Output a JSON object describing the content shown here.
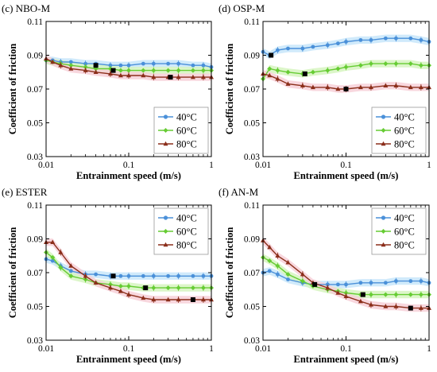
{
  "chart_data": [
    {
      "type": "line",
      "panel_label": "(c) NBO-M",
      "xlabel": "Entrainment speed (m/s)",
      "ylabel": "Coefficient of friction",
      "xscale": "log",
      "xlim": [
        0.01,
        1
      ],
      "ylim": [
        0.03,
        0.11
      ],
      "xticks": [
        "0.01",
        "0.1",
        "1"
      ],
      "yticks": [
        "0.03",
        "0.05",
        "0.07",
        "0.09",
        "0.11"
      ],
      "legend_position": "bottom-right",
      "series": [
        {
          "name": "40°C",
          "color": "#4a90d9",
          "marker": "circle",
          "x": [
            0.01,
            0.012,
            0.015,
            0.02,
            0.03,
            0.04,
            0.06,
            0.08,
            0.1,
            0.15,
            0.2,
            0.3,
            0.4,
            0.6,
            0.8,
            1.0
          ],
          "y": [
            0.087,
            0.087,
            0.086,
            0.086,
            0.085,
            0.085,
            0.084,
            0.084,
            0.084,
            0.085,
            0.085,
            0.085,
            0.085,
            0.084,
            0.084,
            0.083
          ]
        },
        {
          "name": "60°C",
          "color": "#66cc33",
          "marker": "diamond",
          "x": [
            0.01,
            0.012,
            0.015,
            0.02,
            0.03,
            0.04,
            0.06,
            0.08,
            0.1,
            0.15,
            0.2,
            0.3,
            0.4,
            0.6,
            0.8,
            1.0
          ],
          "y": [
            0.087,
            0.086,
            0.085,
            0.084,
            0.083,
            0.082,
            0.082,
            0.081,
            0.081,
            0.081,
            0.081,
            0.081,
            0.081,
            0.081,
            0.081,
            0.081
          ]
        },
        {
          "name": "80°C",
          "color": "#8b2e1a",
          "marker": "triangle",
          "x": [
            0.01,
            0.012,
            0.015,
            0.02,
            0.03,
            0.04,
            0.06,
            0.08,
            0.1,
            0.15,
            0.2,
            0.3,
            0.4,
            0.6,
            0.8,
            1.0
          ],
          "y": [
            0.088,
            0.086,
            0.084,
            0.082,
            0.081,
            0.08,
            0.079,
            0.078,
            0.078,
            0.078,
            0.077,
            0.077,
            0.077,
            0.077,
            0.077,
            0.077
          ]
        }
      ],
      "markers_black": [
        {
          "x": 0.04,
          "y": 0.084
        },
        {
          "x": 0.065,
          "y": 0.081
        },
        {
          "x": 0.32,
          "y": 0.077
        }
      ]
    },
    {
      "type": "line",
      "panel_label": "(d) OSP-M",
      "xlabel": "Entrainment speed (m/s)",
      "ylabel": "Coefficient of friction",
      "xscale": "log",
      "xlim": [
        0.01,
        1
      ],
      "ylim": [
        0.03,
        0.11
      ],
      "xticks": [
        "0.01",
        "0.1",
        "1"
      ],
      "yticks": [
        "0.03",
        "0.05",
        "0.07",
        "0.09",
        "0.11"
      ],
      "legend_position": "bottom-right",
      "series": [
        {
          "name": "40°C",
          "color": "#4a90d9",
          "marker": "circle",
          "x": [
            0.01,
            0.012,
            0.015,
            0.02,
            0.03,
            0.04,
            0.06,
            0.08,
            0.1,
            0.15,
            0.2,
            0.3,
            0.4,
            0.6,
            0.8,
            1.0
          ],
          "y": [
            0.092,
            0.09,
            0.093,
            0.094,
            0.094,
            0.095,
            0.096,
            0.097,
            0.098,
            0.099,
            0.099,
            0.1,
            0.1,
            0.1,
            0.099,
            0.098
          ]
        },
        {
          "name": "60°C",
          "color": "#66cc33",
          "marker": "diamond",
          "x": [
            0.01,
            0.012,
            0.015,
            0.02,
            0.03,
            0.04,
            0.06,
            0.08,
            0.1,
            0.15,
            0.2,
            0.3,
            0.4,
            0.6,
            0.8,
            1.0
          ],
          "y": [
            0.076,
            0.082,
            0.081,
            0.08,
            0.079,
            0.08,
            0.081,
            0.082,
            0.083,
            0.084,
            0.085,
            0.085,
            0.085,
            0.085,
            0.084,
            0.084
          ]
        },
        {
          "name": "80°C",
          "color": "#8b2e1a",
          "marker": "triangle",
          "x": [
            0.01,
            0.012,
            0.015,
            0.02,
            0.03,
            0.04,
            0.06,
            0.08,
            0.1,
            0.15,
            0.2,
            0.3,
            0.4,
            0.6,
            0.8,
            1.0
          ],
          "y": [
            0.079,
            0.078,
            0.076,
            0.073,
            0.072,
            0.071,
            0.071,
            0.07,
            0.07,
            0.071,
            0.071,
            0.072,
            0.072,
            0.071,
            0.071,
            0.071
          ]
        }
      ],
      "markers_black": [
        {
          "x": 0.0125,
          "y": 0.09
        },
        {
          "x": 0.032,
          "y": 0.079
        },
        {
          "x": 0.1,
          "y": 0.07
        }
      ]
    },
    {
      "type": "line",
      "panel_label": "(e) ESTER",
      "xlabel": "Entrainment speed (m/s)",
      "ylabel": "Coefficient of friction",
      "xscale": "log",
      "xlim": [
        0.01,
        1
      ],
      "ylim": [
        0.03,
        0.11
      ],
      "xticks": [
        "0.01",
        "0.1",
        "1"
      ],
      "yticks": [
        "0.03",
        "0.05",
        "0.07",
        "0.09",
        "0.11"
      ],
      "legend_position": "top-right",
      "series": [
        {
          "name": "40°C",
          "color": "#4a90d9",
          "marker": "circle",
          "x": [
            0.01,
            0.012,
            0.015,
            0.02,
            0.03,
            0.04,
            0.06,
            0.08,
            0.1,
            0.15,
            0.2,
            0.3,
            0.4,
            0.6,
            0.8,
            1.0
          ],
          "y": [
            0.078,
            0.077,
            0.074,
            0.071,
            0.069,
            0.069,
            0.068,
            0.068,
            0.068,
            0.068,
            0.068,
            0.068,
            0.068,
            0.068,
            0.068,
            0.068
          ]
        },
        {
          "name": "60°C",
          "color": "#66cc33",
          "marker": "diamond",
          "x": [
            0.01,
            0.012,
            0.015,
            0.02,
            0.03,
            0.04,
            0.06,
            0.08,
            0.1,
            0.15,
            0.2,
            0.3,
            0.4,
            0.6,
            0.8,
            1.0
          ],
          "y": [
            0.082,
            0.079,
            0.073,
            0.068,
            0.066,
            0.064,
            0.063,
            0.062,
            0.062,
            0.061,
            0.061,
            0.061,
            0.061,
            0.061,
            0.061,
            0.061
          ]
        },
        {
          "name": "80°C",
          "color": "#8b2e1a",
          "marker": "triangle",
          "x": [
            0.01,
            0.012,
            0.015,
            0.02,
            0.03,
            0.04,
            0.06,
            0.08,
            0.1,
            0.15,
            0.2,
            0.3,
            0.4,
            0.6,
            0.8,
            1.0
          ],
          "y": [
            0.088,
            0.088,
            0.082,
            0.074,
            0.068,
            0.064,
            0.061,
            0.059,
            0.057,
            0.055,
            0.054,
            0.054,
            0.054,
            0.054,
            0.054,
            0.054
          ]
        }
      ],
      "markers_black": [
        {
          "x": 0.065,
          "y": 0.068
        },
        {
          "x": 0.16,
          "y": 0.061
        },
        {
          "x": 0.6,
          "y": 0.054
        }
      ]
    },
    {
      "type": "line",
      "panel_label": "(f) AN-M",
      "xlabel": "Entrainment speed (m/s)",
      "ylabel": "Coefficient of friction",
      "xscale": "log",
      "xlim": [
        0.01,
        1
      ],
      "ylim": [
        0.03,
        0.11
      ],
      "xticks": [
        "0.01",
        "0.1",
        "1"
      ],
      "yticks": [
        "0.03",
        "0.05",
        "0.07",
        "0.09",
        "0.11"
      ],
      "legend_position": "top-right",
      "series": [
        {
          "name": "40°C",
          "color": "#4a90d9",
          "marker": "circle",
          "x": [
            0.01,
            0.012,
            0.015,
            0.02,
            0.03,
            0.04,
            0.06,
            0.08,
            0.1,
            0.15,
            0.2,
            0.3,
            0.4,
            0.6,
            0.8,
            1.0
          ],
          "y": [
            0.07,
            0.071,
            0.069,
            0.066,
            0.064,
            0.063,
            0.063,
            0.063,
            0.063,
            0.064,
            0.064,
            0.064,
            0.065,
            0.065,
            0.065,
            0.064
          ]
        },
        {
          "name": "60°C",
          "color": "#66cc33",
          "marker": "diamond",
          "x": [
            0.01,
            0.012,
            0.015,
            0.02,
            0.03,
            0.04,
            0.06,
            0.08,
            0.1,
            0.15,
            0.2,
            0.3,
            0.4,
            0.6,
            0.8,
            1.0
          ],
          "y": [
            0.079,
            0.077,
            0.074,
            0.069,
            0.065,
            0.062,
            0.06,
            0.059,
            0.058,
            0.057,
            0.057,
            0.057,
            0.057,
            0.057,
            0.057,
            0.057
          ]
        },
        {
          "name": "80°C",
          "color": "#8b2e1a",
          "marker": "triangle",
          "x": [
            0.01,
            0.012,
            0.015,
            0.02,
            0.03,
            0.04,
            0.06,
            0.08,
            0.1,
            0.15,
            0.2,
            0.3,
            0.4,
            0.6,
            0.8,
            1.0
          ],
          "y": [
            0.089,
            0.085,
            0.08,
            0.076,
            0.069,
            0.064,
            0.061,
            0.058,
            0.056,
            0.053,
            0.051,
            0.05,
            0.05,
            0.049,
            0.049,
            0.049
          ]
        }
      ],
      "markers_black": [
        {
          "x": 0.042,
          "y": 0.063
        },
        {
          "x": 0.16,
          "y": 0.057
        },
        {
          "x": 0.6,
          "y": 0.049
        }
      ]
    }
  ]
}
